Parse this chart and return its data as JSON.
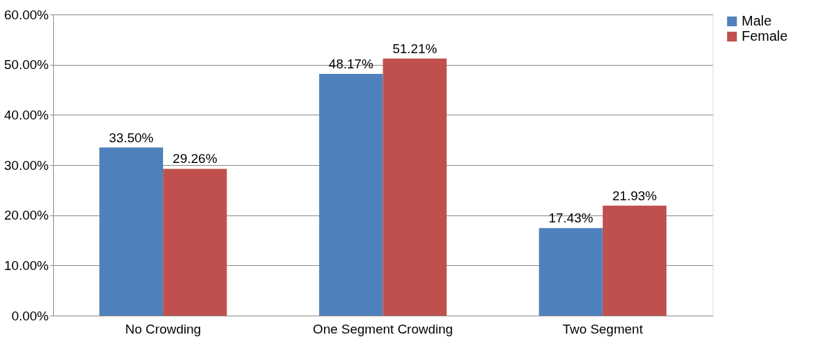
{
  "chart_data": {
    "type": "bar",
    "categories": [
      "No Crowding",
      "One  Segment Crowding",
      "Two Segment"
    ],
    "series": [
      {
        "name": "Male",
        "color": "#4f81bd",
        "values": [
          33.5,
          48.17,
          17.43
        ],
        "value_labels": [
          "33.50%",
          "48.17%",
          "17.43%"
        ]
      },
      {
        "name": "Female",
        "color": "#c0504d",
        "values": [
          29.26,
          51.21,
          21.93
        ],
        "value_labels": [
          "29.26%",
          "51.21%",
          "21.93%"
        ]
      }
    ],
    "ylim": [
      0,
      60
    ],
    "yticks": [
      {
        "value": 0,
        "label": "0.00%"
      },
      {
        "value": 10,
        "label": "10.00%"
      },
      {
        "value": 20,
        "label": "20.00%"
      },
      {
        "value": 30,
        "label": "30.00%"
      },
      {
        "value": 40,
        "label": "40.00%"
      },
      {
        "value": 50,
        "label": "50.00%"
      },
      {
        "value": 60,
        "label": "60.00%"
      }
    ],
    "grid": "y",
    "legend": "right"
  }
}
